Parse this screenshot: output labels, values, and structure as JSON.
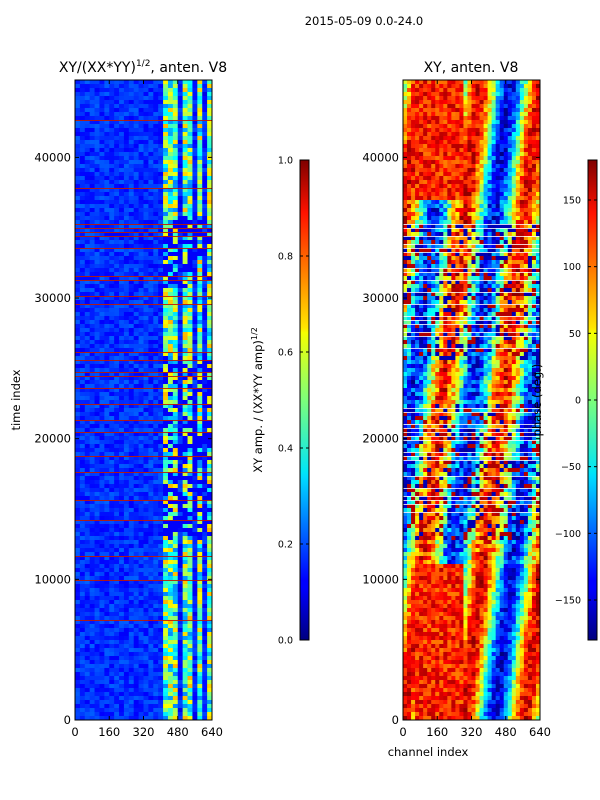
{
  "suptitle": "2015-05-09 0.0-24.0",
  "chart_data": [
    {
      "type": "heatmap",
      "title": "XY/(XX*YY)",
      "title_superscript": "1/2",
      "title_suffix": ", anten. V8",
      "xlabel": "",
      "ylabel": "time index",
      "xlim": [
        0,
        640
      ],
      "ylim": [
        0,
        45500
      ],
      "xticks": [
        0,
        160,
        320,
        480,
        640
      ],
      "yticks": [
        0,
        10000,
        20000,
        30000,
        40000
      ],
      "colorbar": {
        "label": "XY amp. / (XX*YY amp)",
        "label_superscript": "1/2",
        "range": [
          0.0,
          1.0
        ],
        "ticks": [
          "0.0",
          "0.2",
          "0.4",
          "0.6",
          "0.8",
          "1.0"
        ],
        "colormap": "jet"
      }
    },
    {
      "type": "heatmap",
      "title": "XY, anten. V8",
      "xlabel": "channel index",
      "ylabel": "",
      "xlim": [
        0,
        640
      ],
      "ylim": [
        0,
        45500
      ],
      "xticks": [
        0,
        160,
        320,
        480,
        640
      ],
      "yticks": [
        0,
        10000,
        20000,
        30000,
        40000
      ],
      "colorbar": {
        "label": "phase (deg.)",
        "range": [
          -180,
          180
        ],
        "ticks": [
          "−150",
          "−100",
          "−50",
          "0",
          "50",
          "100",
          "150"
        ],
        "colormap": "jet"
      }
    }
  ]
}
